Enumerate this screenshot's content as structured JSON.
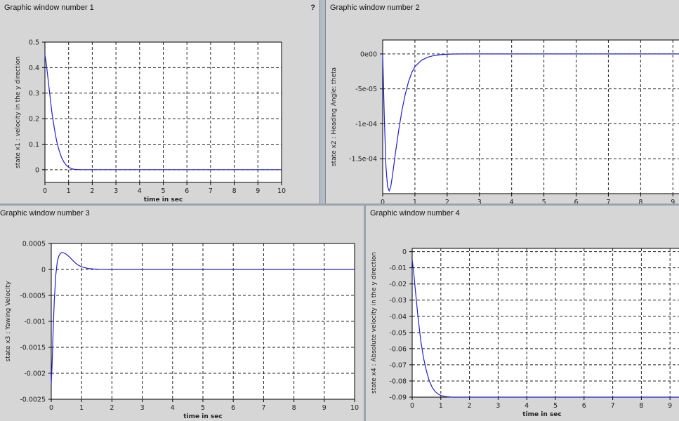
{
  "windows": [
    {
      "title": "Graphic window number 1",
      "help": "?"
    },
    {
      "title": "Graphic window number 2"
    },
    {
      "title": "Graphic window number 3"
    },
    {
      "title": "Graphic window number 4"
    }
  ],
  "chart_data": [
    {
      "type": "line",
      "title": "",
      "xlabel": "time in sec",
      "ylabel": "state x1 : velocity in the y direction",
      "xlim": [
        0,
        10
      ],
      "ylim": [
        -0.05,
        0.5
      ],
      "xticks": [
        0,
        1,
        2,
        3,
        4,
        5,
        6,
        7,
        8,
        9,
        10
      ],
      "xtick_labels": [
        "0",
        "1",
        "2",
        "3",
        "4",
        "5",
        "6",
        "7",
        "8",
        "9",
        "10"
      ],
      "yticks": [
        0,
        0.1,
        0.2,
        0.3,
        0.4,
        0.5
      ],
      "ytick_labels": [
        "0",
        "0.1",
        "0.2",
        "0.3",
        "0.4",
        "0.5"
      ],
      "grid": true,
      "color": "#1f1fd1",
      "series": [
        {
          "x": [
            0,
            0.05,
            0.1,
            0.2,
            0.3,
            0.4,
            0.5,
            0.6,
            0.7,
            0.8,
            0.9,
            1.0,
            1.1,
            1.2,
            1.3,
            1.5,
            2,
            3,
            4,
            5,
            6,
            7,
            8,
            9,
            10
          ],
          "y": [
            0.45,
            0.42,
            0.38,
            0.3,
            0.22,
            0.16,
            0.11,
            0.075,
            0.048,
            0.03,
            0.018,
            0.01,
            0.005,
            0.002,
            0.001,
            0,
            0,
            0,
            0,
            0,
            0,
            0,
            0,
            0,
            0
          ]
        }
      ]
    },
    {
      "type": "line",
      "title": "",
      "xlabel": "time in sec",
      "ylabel": "state x2 : Heading Angle: theta",
      "xlim": [
        0,
        9.8
      ],
      "ylim": [
        -0.0002,
        2e-05
      ],
      "xticks": [
        0,
        1,
        2,
        3,
        4,
        5,
        6,
        7,
        8,
        9
      ],
      "xtick_labels": [
        "0",
        "1",
        "2",
        "3",
        "4",
        "5",
        "6",
        "7",
        "8",
        "9"
      ],
      "yticks": [
        0,
        -5e-05,
        -0.0001,
        -0.00015
      ],
      "ytick_labels": [
        "0e00",
        "-5e-05",
        "-1e-04",
        "-1.5e-04"
      ],
      "grid": true,
      "color": "#1f1fd1",
      "series": [
        {
          "x": [
            0,
            0.05,
            0.1,
            0.15,
            0.2,
            0.25,
            0.3,
            0.4,
            0.5,
            0.6,
            0.7,
            0.8,
            0.9,
            1.0,
            1.2,
            1.4,
            1.6,
            1.8,
            2.0,
            2.2,
            2.5,
            3,
            4,
            5,
            6,
            7,
            8,
            9,
            9.8
          ],
          "y": [
            0,
            -9e-05,
            -0.00016,
            -0.00019,
            -0.000196,
            -0.00019,
            -0.000175,
            -0.00014,
            -0.000108,
            -8e-05,
            -5.8e-05,
            -4e-05,
            -2.7e-05,
            -1.8e-05,
            -9e-06,
            -4.5e-06,
            -2.2e-06,
            -1e-06,
            -4e-07,
            -1e-07,
            0,
            0,
            0,
            0,
            0,
            0,
            0,
            0,
            0
          ]
        }
      ]
    },
    {
      "type": "line",
      "title": "",
      "xlabel": "time in sec",
      "ylabel": "state x3 : Yawing Velocity",
      "xlim": [
        0,
        10
      ],
      "ylim": [
        -0.0025,
        0.0005
      ],
      "xticks": [
        0,
        1,
        2,
        3,
        4,
        5,
        6,
        7,
        8,
        9,
        10
      ],
      "xtick_labels": [
        "0",
        "1",
        "2",
        "3",
        "4",
        "5",
        "6",
        "7",
        "8",
        "9",
        "10"
      ],
      "yticks": [
        0.0005,
        0,
        -0.0005,
        -0.001,
        -0.0015,
        -0.002,
        -0.0025
      ],
      "ytick_labels": [
        "0.0005",
        "0",
        "-0.0005",
        "-0.001",
        "-0.0015",
        "-0.002",
        "-0.0025"
      ],
      "grid": true,
      "color": "#1f1fd1",
      "series": [
        {
          "x": [
            0,
            0.03,
            0.06,
            0.1,
            0.15,
            0.2,
            0.25,
            0.3,
            0.35,
            0.4,
            0.45,
            0.5,
            0.6,
            0.7,
            0.8,
            0.9,
            1.0,
            1.2,
            1.4,
            1.6,
            2,
            3,
            4,
            5,
            6,
            7,
            8,
            9,
            10
          ],
          "y": [
            -0.0022,
            -0.0018,
            -0.0012,
            -0.0006,
            -0.0001,
            0.00015,
            0.00026,
            0.00031,
            0.000325,
            0.000322,
            0.00031,
            0.00029,
            0.00024,
            0.00018,
            0.00012,
            8e-05,
            5e-05,
            2e-05,
            8e-06,
            2e-06,
            0,
            0,
            0,
            0,
            0,
            0,
            0,
            0,
            0
          ]
        }
      ]
    },
    {
      "type": "line",
      "title": "",
      "xlabel": "time in sec",
      "ylabel": "state x4 : Absolute velocity in the y direction",
      "xlim": [
        0,
        10
      ],
      "ylim": [
        -0.09,
        0.002
      ],
      "xticks": [
        0,
        1,
        2,
        3,
        4,
        5,
        6,
        7,
        8,
        9
      ],
      "xtick_labels": [
        "0",
        "1",
        "2",
        "3",
        "4",
        "5",
        "6",
        "7",
        "8",
        "9"
      ],
      "yticks": [
        0,
        -0.01,
        -0.02,
        -0.03,
        -0.04,
        -0.05,
        -0.06,
        -0.07,
        -0.08,
        -0.09
      ],
      "ytick_labels": [
        "0",
        "-0.01",
        "-0.02",
        "-0.03",
        "-0.04",
        "-0.05",
        "-0.06",
        "-0.07",
        "-0.08",
        "-0.09"
      ],
      "grid": true,
      "color": "#1f1fd1",
      "series": [
        {
          "x": [
            0,
            0.05,
            0.1,
            0.2,
            0.3,
            0.4,
            0.5,
            0.6,
            0.7,
            0.8,
            0.9,
            1.0,
            1.2,
            1.4,
            2,
            3,
            4,
            5,
            6,
            7,
            8,
            9,
            10
          ],
          "y": [
            -0.005,
            -0.012,
            -0.022,
            -0.04,
            -0.055,
            -0.066,
            -0.074,
            -0.08,
            -0.084,
            -0.0865,
            -0.088,
            -0.089,
            -0.0897,
            -0.09,
            -0.09,
            -0.09,
            -0.09,
            -0.09,
            -0.09,
            -0.09,
            -0.09,
            -0.09,
            -0.09
          ]
        }
      ]
    }
  ]
}
